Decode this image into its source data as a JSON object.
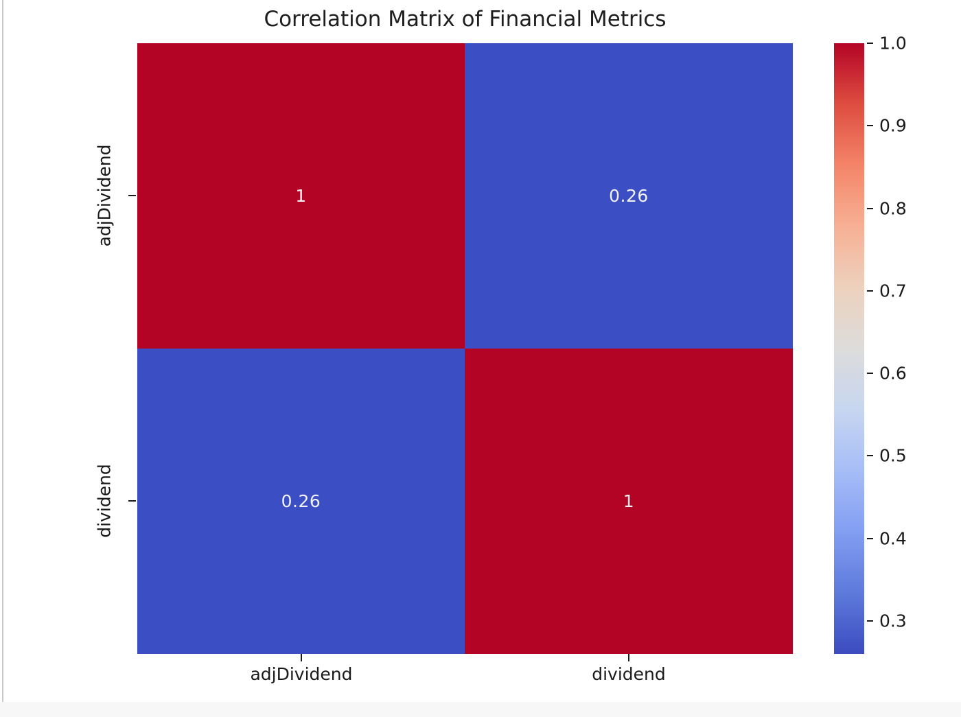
{
  "chart": {
    "title": "Correlation Matrix of Financial Metrics",
    "colors": {
      "cell_high": "#B40426",
      "cell_low": "#3C4EC4",
      "annotation_text": "#F2F2F2",
      "axis_text": "#1A1A1A"
    },
    "colormap_stops": [
      "#B40426",
      "#DE4D40",
      "#F48468",
      "#F7B094",
      "#EDD1BD",
      "#DDDCDB",
      "#C7D6F0",
      "#A6BDF7",
      "#829EF2",
      "#5E7ADB",
      "#3B4CC0"
    ]
  },
  "chart_data": {
    "type": "heatmap",
    "title": "Correlation Matrix of Financial Metrics",
    "categories": [
      "adjDividend",
      "dividend"
    ],
    "matrix": [
      [
        1,
        0.26
      ],
      [
        0.26,
        1
      ]
    ],
    "cell_labels": [
      [
        "1",
        "0.26"
      ],
      [
        "0.26",
        "1"
      ]
    ],
    "colormap": "coolwarm",
    "vmin": 0.26,
    "vmax": 1.0,
    "colorbar_ticks": [
      1.0,
      0.9,
      0.8,
      0.7,
      0.6,
      0.5,
      0.4,
      0.3
    ],
    "colorbar_tick_labels": [
      "1.0",
      "0.9",
      "0.8",
      "0.7",
      "0.6",
      "0.5",
      "0.4",
      "0.3"
    ],
    "legend_position": "right-colorbar",
    "grid": false,
    "xlabel": "",
    "ylabel": ""
  }
}
